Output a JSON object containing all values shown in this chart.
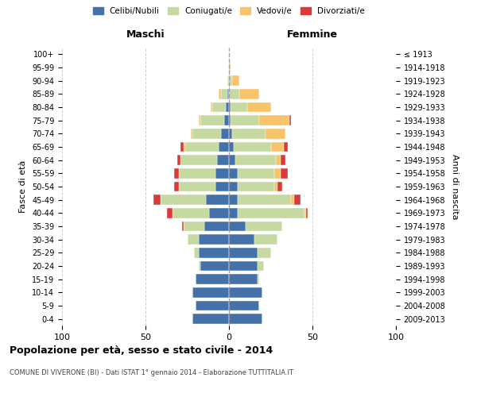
{
  "age_groups": [
    "100+",
    "95-99",
    "90-94",
    "85-89",
    "80-84",
    "75-79",
    "70-74",
    "65-69",
    "60-64",
    "55-59",
    "50-54",
    "45-49",
    "40-44",
    "35-39",
    "30-34",
    "25-29",
    "20-24",
    "15-19",
    "10-14",
    "5-9",
    "0-4"
  ],
  "birth_years": [
    "≤ 1913",
    "1914-1918",
    "1919-1923",
    "1924-1928",
    "1929-1933",
    "1934-1938",
    "1939-1943",
    "1944-1948",
    "1949-1953",
    "1954-1958",
    "1959-1963",
    "1964-1968",
    "1969-1973",
    "1974-1978",
    "1979-1983",
    "1984-1988",
    "1989-1993",
    "1994-1998",
    "1999-2003",
    "2004-2008",
    "2009-2013"
  ],
  "male": {
    "celibi": [
      0,
      0,
      0,
      1,
      2,
      3,
      5,
      6,
      7,
      8,
      8,
      14,
      12,
      15,
      18,
      18,
      17,
      20,
      22,
      20,
      22
    ],
    "coniugati": [
      0,
      0,
      1,
      4,
      8,
      14,
      17,
      20,
      22,
      22,
      22,
      27,
      22,
      12,
      7,
      3,
      1,
      0,
      0,
      0,
      0
    ],
    "vedovi": [
      0,
      0,
      0,
      1,
      1,
      1,
      1,
      1,
      0,
      0,
      0,
      0,
      0,
      0,
      0,
      0,
      0,
      0,
      0,
      0,
      0
    ],
    "divorziati": [
      0,
      0,
      0,
      0,
      0,
      0,
      0,
      2,
      2,
      3,
      3,
      4,
      3,
      1,
      0,
      0,
      0,
      0,
      0,
      0,
      0
    ]
  },
  "female": {
    "nubili": [
      0,
      0,
      0,
      0,
      1,
      1,
      2,
      3,
      4,
      5,
      5,
      5,
      5,
      10,
      15,
      17,
      17,
      17,
      20,
      18,
      20
    ],
    "coniugate": [
      0,
      0,
      2,
      6,
      10,
      17,
      20,
      22,
      24,
      22,
      22,
      32,
      40,
      22,
      14,
      8,
      4,
      1,
      0,
      0,
      0
    ],
    "vedove": [
      0,
      1,
      4,
      12,
      14,
      18,
      12,
      8,
      3,
      4,
      2,
      2,
      1,
      0,
      0,
      0,
      0,
      0,
      0,
      0,
      0
    ],
    "divorziate": [
      0,
      0,
      0,
      0,
      0,
      1,
      0,
      2,
      3,
      4,
      3,
      4,
      1,
      0,
      0,
      0,
      0,
      0,
      0,
      0,
      0
    ]
  },
  "colors": {
    "celibi": "#4472a8",
    "coniugati": "#c5d9a0",
    "vedovi": "#f9c36a",
    "divorziati": "#d93b3b"
  },
  "title": "Popolazione per età, sesso e stato civile - 2014",
  "subtitle": "COMUNE DI VIVERONE (BI) - Dati ISTAT 1° gennaio 2014 - Elaborazione TUTTITALIA.IT",
  "xlabel_left": "Maschi",
  "xlabel_right": "Femmine",
  "ylabel": "Fasce di età",
  "ylabel_right": "Anni di nascita",
  "xlim": 100,
  "legend_labels": [
    "Celibi/Nubili",
    "Coniugati/e",
    "Vedovi/e",
    "Divorziati/e"
  ],
  "background_color": "#ffffff",
  "grid_color": "#cccccc"
}
